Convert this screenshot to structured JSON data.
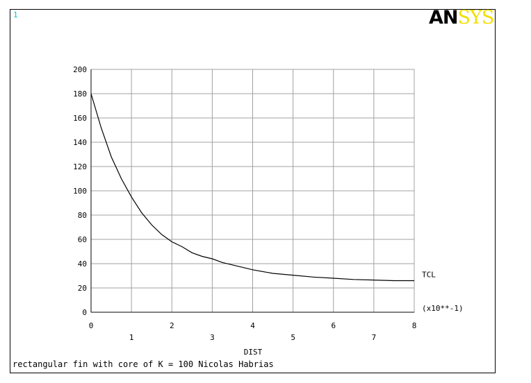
{
  "window": {
    "number": "1",
    "logo_primary": "AN",
    "logo_secondary": "SYS",
    "footer": "rectangular fin with core of K = 100 Nicolas Habrias",
    "colors": {
      "frame": "#000000",
      "grid": "#a0a0a0",
      "curve": "#000000",
      "window_number": "#00c8c8",
      "logo_accent": "#f2e000"
    }
  },
  "chart_data": {
    "type": "line",
    "xlabel": "DIST",
    "ylabel": "",
    "x_multiplier_label": "(x10**-1)",
    "xlim": [
      0,
      8
    ],
    "ylim": [
      0,
      200
    ],
    "x_ticks_upper": [
      "0",
      "2",
      "4",
      "6",
      "8"
    ],
    "x_ticks_upper_values": [
      0,
      2,
      4,
      6,
      8
    ],
    "x_ticks_lower": [
      "1",
      "3",
      "5",
      "7"
    ],
    "x_ticks_lower_values": [
      1,
      3,
      5,
      7
    ],
    "y_ticks": [
      "0",
      "20",
      "40",
      "60",
      "80",
      "100",
      "120",
      "140",
      "160",
      "180",
      "200"
    ],
    "y_ticks_values": [
      0,
      20,
      40,
      60,
      80,
      100,
      120,
      140,
      160,
      180,
      200
    ],
    "grid": true,
    "series": [
      {
        "name": "TCL",
        "x": [
          0,
          0.25,
          0.5,
          0.75,
          1.0,
          1.25,
          1.5,
          1.75,
          2.0,
          2.25,
          2.5,
          2.75,
          3.0,
          3.25,
          3.5,
          3.75,
          4.0,
          4.5,
          5.0,
          5.5,
          6.0,
          6.5,
          7.0,
          7.5,
          8.0
        ],
        "y": [
          180,
          152,
          128,
          110,
          95,
          82,
          72,
          64,
          58,
          54,
          49,
          46,
          44,
          41,
          39,
          37,
          35,
          32,
          30.5,
          29,
          28,
          27,
          26.5,
          26,
          26
        ]
      }
    ]
  }
}
